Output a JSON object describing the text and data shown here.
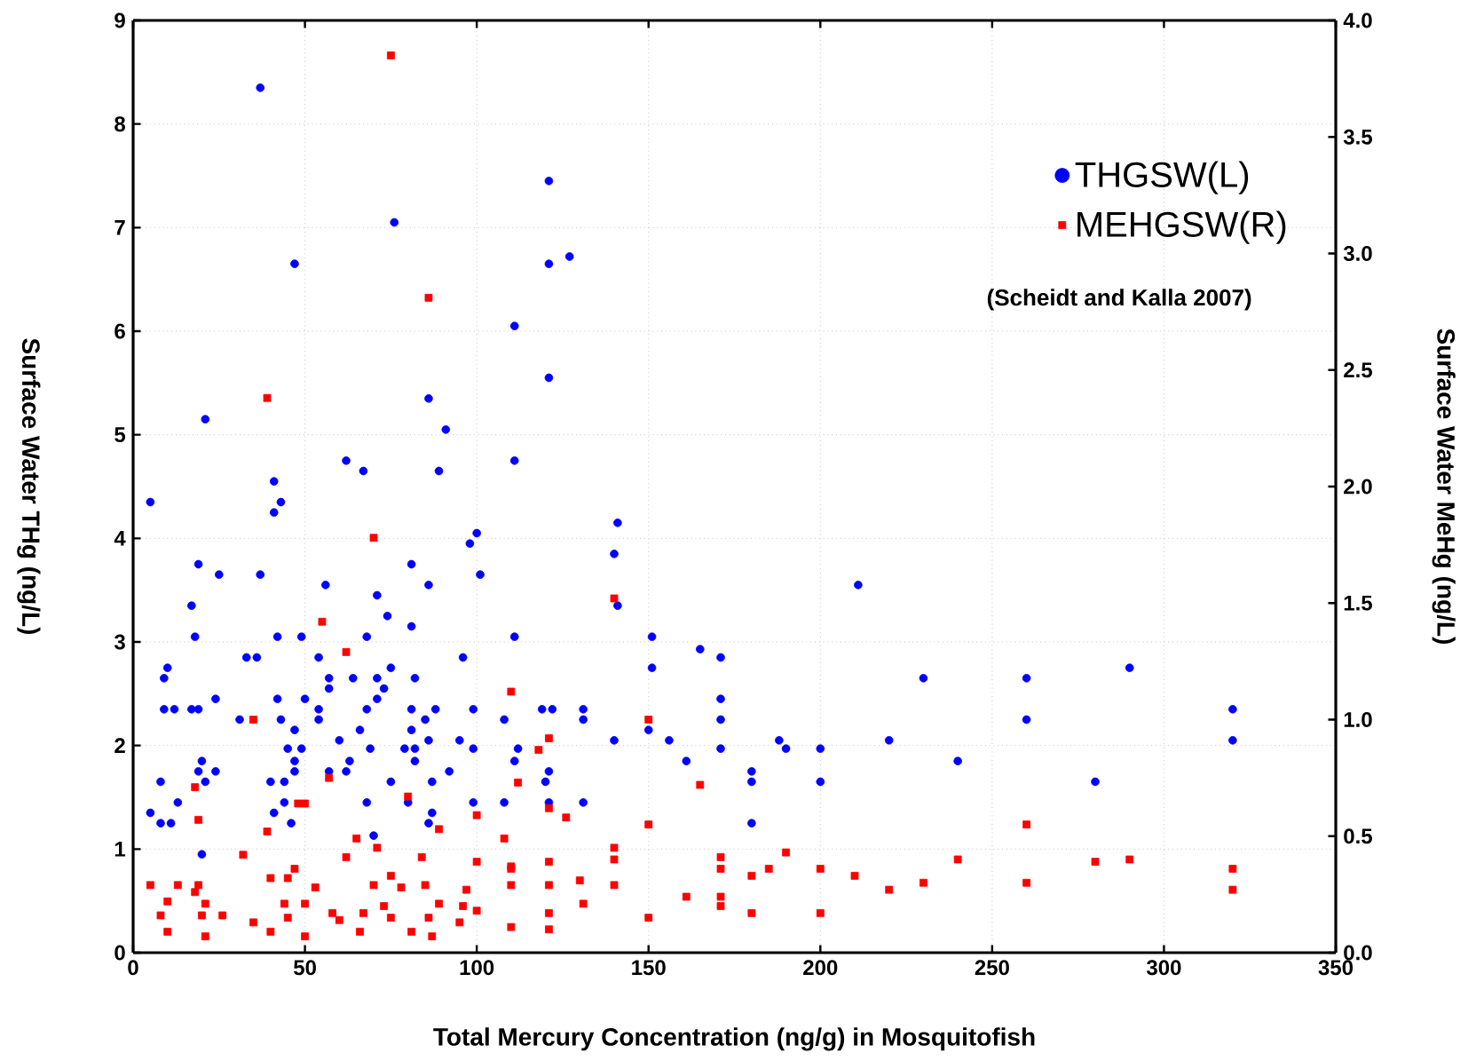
{
  "chart_data": {
    "type": "scatter",
    "xlabel": "Total Mercury Concentration (ng/g) in Mosquitofish",
    "ylabel": "Surface Water THg (ng/L)",
    "y2label": "Surface Water MeHg (ng/L)",
    "annotations": [
      "(Scheidt and Kalla 2007)"
    ],
    "xlim": [
      0,
      350
    ],
    "xticks": [
      0,
      50,
      100,
      150,
      200,
      250,
      300,
      350
    ],
    "ylim": [
      0,
      9
    ],
    "yticks": [
      0,
      1,
      2,
      3,
      4,
      5,
      6,
      7,
      8,
      9
    ],
    "y2lim": [
      0,
      4
    ],
    "y2ticks": [
      {
        "value": 0,
        "label": "0.0"
      },
      {
        "value": 0.5,
        "label": "0.5"
      },
      {
        "value": 1,
        "label": "1.0"
      },
      {
        "value": 1.5,
        "label": "1.5"
      },
      {
        "value": 2,
        "label": "2.0"
      },
      {
        "value": 2.5,
        "label": "2.5"
      },
      {
        "value": 3,
        "label": "3.0"
      },
      {
        "value": 3.5,
        "label": "3.5"
      },
      {
        "value": 4,
        "label": "4.0"
      }
    ],
    "grid": true,
    "legend": "top right",
    "series": [
      {
        "name": "THGSW(L)",
        "color": "#0000ff",
        "marker": "circle",
        "axis": "y",
        "x": [
          5,
          37,
          47,
          76,
          121,
          127,
          121,
          111,
          121,
          21,
          86,
          91,
          62,
          67,
          89,
          111,
          41,
          43,
          41,
          100,
          98,
          141,
          140,
          19,
          25,
          37,
          81,
          86,
          101,
          56,
          211,
          71,
          17,
          141,
          74,
          81,
          18,
          42,
          49,
          68,
          111,
          151,
          165,
          33,
          36,
          54,
          96,
          171,
          10,
          75,
          151,
          290,
          9,
          57,
          64,
          71,
          82,
          230,
          260,
          57,
          73,
          24,
          42,
          50,
          71,
          171,
          9,
          12,
          17,
          19,
          54,
          68,
          81,
          88,
          99,
          119,
          122,
          131,
          320,
          31,
          43,
          54,
          85,
          108,
          131,
          171,
          260,
          47,
          66,
          81,
          150,
          60,
          86,
          95,
          140,
          156,
          188,
          220,
          320,
          45,
          49,
          69,
          79,
          82,
          99,
          112,
          171,
          190,
          200,
          20,
          47,
          63,
          82,
          111,
          161,
          240,
          19,
          24,
          47,
          57,
          62,
          92,
          121,
          180,
          8,
          21,
          40,
          44,
          75,
          87,
          120,
          180,
          200,
          280,
          13,
          44,
          68,
          80,
          99,
          108,
          121,
          131,
          5,
          41,
          87,
          8,
          11,
          46,
          86,
          180,
          20,
          70
        ],
        "values": [
          4.35,
          8.35,
          6.65,
          7.05,
          7.45,
          6.72,
          6.65,
          6.05,
          5.55,
          5.15,
          5.35,
          5.05,
          4.75,
          4.65,
          4.65,
          4.75,
          4.55,
          4.35,
          4.25,
          4.05,
          3.95,
          4.15,
          3.85,
          3.75,
          3.65,
          3.65,
          3.75,
          3.55,
          3.65,
          3.55,
          3.55,
          3.45,
          3.35,
          3.35,
          3.25,
          3.15,
          3.05,
          3.05,
          3.05,
          3.05,
          3.05,
          3.05,
          2.93,
          2.85,
          2.85,
          2.85,
          2.85,
          2.85,
          2.75,
          2.75,
          2.75,
          2.75,
          2.65,
          2.65,
          2.65,
          2.65,
          2.65,
          2.65,
          2.65,
          2.55,
          2.55,
          2.45,
          2.45,
          2.45,
          2.45,
          2.45,
          2.35,
          2.35,
          2.35,
          2.35,
          2.35,
          2.35,
          2.35,
          2.35,
          2.35,
          2.35,
          2.35,
          2.35,
          2.35,
          2.25,
          2.25,
          2.25,
          2.25,
          2.25,
          2.25,
          2.25,
          2.25,
          2.15,
          2.15,
          2.15,
          2.15,
          2.05,
          2.05,
          2.05,
          2.05,
          2.05,
          2.05,
          2.05,
          2.05,
          1.97,
          1.97,
          1.97,
          1.97,
          1.97,
          1.97,
          1.97,
          1.97,
          1.97,
          1.97,
          1.85,
          1.85,
          1.85,
          1.85,
          1.85,
          1.85,
          1.85,
          1.75,
          1.75,
          1.75,
          1.75,
          1.75,
          1.75,
          1.75,
          1.75,
          1.65,
          1.65,
          1.65,
          1.65,
          1.65,
          1.65,
          1.65,
          1.65,
          1.65,
          1.65,
          1.45,
          1.45,
          1.45,
          1.45,
          1.45,
          1.45,
          1.45,
          1.45,
          1.35,
          1.35,
          1.35,
          1.25,
          1.25,
          1.25,
          1.25,
          1.25,
          0.95,
          1.13
        ]
      },
      {
        "name": "MEHGSW(R)",
        "color": "#ff0000",
        "marker": "square",
        "axis": "y2",
        "x": [
          75,
          86,
          39,
          70,
          140,
          55,
          62,
          35,
          110,
          150,
          121,
          118,
          112,
          165,
          57,
          18,
          50,
          48,
          80,
          89,
          100,
          121,
          126,
          108,
          65,
          39,
          19,
          150,
          260,
          140,
          71,
          32,
          62,
          84,
          171,
          190,
          240,
          280,
          290,
          320,
          200,
          185,
          171,
          130,
          110,
          100,
          121,
          140,
          47,
          75,
          110,
          210,
          180,
          230,
          260,
          320,
          220,
          5,
          13,
          19,
          40,
          70,
          85,
          110,
          121,
          140,
          45,
          53,
          78,
          97,
          161,
          171,
          150,
          200,
          180,
          171,
          131,
          121,
          18,
          10,
          21,
          44,
          50,
          58,
          67,
          73,
          89,
          96,
          100,
          8,
          20,
          26,
          35,
          45,
          60,
          75,
          86,
          95,
          10,
          21,
          40,
          50,
          66,
          81,
          87,
          110,
          121
        ],
        "values": [
          3.85,
          2.81,
          2.38,
          1.78,
          1.52,
          1.42,
          1.29,
          1.0,
          1.12,
          1.0,
          0.92,
          0.87,
          0.73,
          0.72,
          0.75,
          0.71,
          0.64,
          0.64,
          0.67,
          0.53,
          0.59,
          0.62,
          0.58,
          0.49,
          0.49,
          0.52,
          0.57,
          0.55,
          0.55,
          0.45,
          0.45,
          0.42,
          0.41,
          0.41,
          0.41,
          0.43,
          0.4,
          0.39,
          0.4,
          0.36,
          0.36,
          0.36,
          0.36,
          0.31,
          0.36,
          0.39,
          0.39,
          0.4,
          0.36,
          0.33,
          0.37,
          0.33,
          0.33,
          0.3,
          0.3,
          0.27,
          0.27,
          0.29,
          0.29,
          0.29,
          0.32,
          0.29,
          0.29,
          0.29,
          0.29,
          0.29,
          0.32,
          0.28,
          0.28,
          0.27,
          0.24,
          0.24,
          0.15,
          0.17,
          0.17,
          0.2,
          0.21,
          0.17,
          0.26,
          0.22,
          0.21,
          0.21,
          0.21,
          0.17,
          0.17,
          0.2,
          0.21,
          0.2,
          0.18,
          0.16,
          0.16,
          0.16,
          0.13,
          0.15,
          0.14,
          0.15,
          0.15,
          0.13,
          0.09,
          0.07,
          0.09,
          0.07,
          0.09,
          0.09,
          0.07,
          0.11,
          0.1
        ]
      }
    ]
  }
}
